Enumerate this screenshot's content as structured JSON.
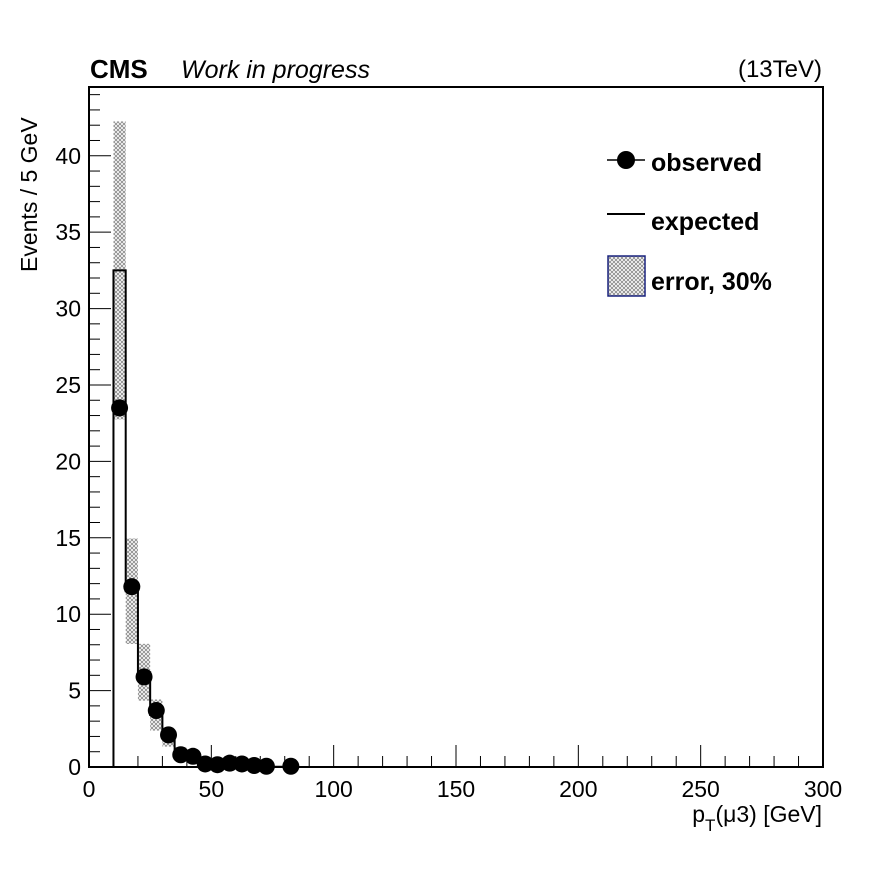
{
  "header": {
    "experiment": "CMS",
    "status": "Work in progress",
    "energy": "(13TeV)"
  },
  "chart_data": {
    "type": "bar",
    "xlabel_main": "p",
    "xlabel_sub": "T",
    "xlabel_rest": "(μ3) [GeV]",
    "ylabel": "Events / 5 GeV",
    "xlim": [
      0,
      300
    ],
    "ylim": [
      0,
      44.5
    ],
    "x_ticks": [
      0,
      50,
      100,
      150,
      200,
      250,
      300
    ],
    "y_ticks": [
      0,
      5,
      10,
      15,
      20,
      25,
      30,
      35,
      40
    ],
    "bin_width": 5,
    "grid": false,
    "legend_position": "top-right",
    "legend": {
      "observed": "observed",
      "expected": "expected",
      "error": "error, 30%"
    },
    "error_fraction": 0.3,
    "colors": {
      "axes": "#000000",
      "error_band": "#9a9a9a",
      "error_border": "#1a237e"
    },
    "expected": {
      "bin_low_edges": [
        10,
        15,
        20,
        25,
        30,
        35,
        40,
        45,
        50,
        55,
        60,
        65,
        70,
        75,
        80
      ],
      "values": [
        32.5,
        11.5,
        6.2,
        3.4,
        1.9,
        1.0,
        0.6,
        0.25,
        0.15,
        0.1,
        0.07,
        0.05,
        0.03,
        0.02,
        0.02
      ]
    },
    "observed": {
      "x": [
        12.5,
        17.5,
        22.5,
        27.5,
        32.5,
        37.5,
        42.5,
        47.5,
        52.5,
        57.5,
        62.5,
        67.5,
        72.5,
        82.5
      ],
      "y": [
        23.5,
        11.8,
        5.9,
        3.7,
        2.1,
        0.8,
        0.7,
        0.2,
        0.15,
        0.25,
        0.2,
        0.1,
        0.05,
        0.05
      ]
    }
  }
}
